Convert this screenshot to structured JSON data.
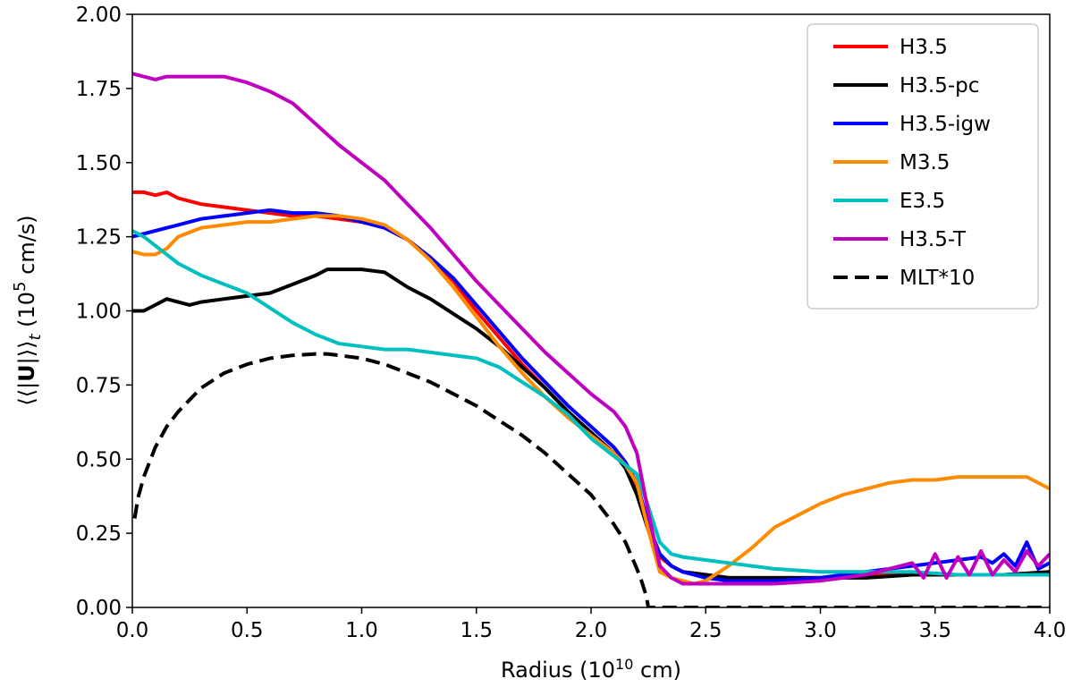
{
  "chart_data": {
    "type": "line",
    "title": "",
    "xlabel": {
      "prefix": "Radius (10",
      "exp": "10",
      "suffix": " cm)"
    },
    "ylabel": {
      "prefix": "⟨⟨|",
      "bold": "U",
      "mid": "|⟩⟩",
      "sub": "t",
      "paren": " (10",
      "exp": "5",
      "suffix": " cm/s)"
    },
    "xlim": [
      0.0,
      4.0
    ],
    "ylim": [
      0.0,
      2.0
    ],
    "xticks": [
      "0.0",
      "0.5",
      "1.0",
      "1.5",
      "2.0",
      "2.5",
      "3.0",
      "3.5",
      "4.0"
    ],
    "yticks": [
      "0.00",
      "0.25",
      "0.50",
      "0.75",
      "1.00",
      "1.25",
      "1.50",
      "1.75",
      "2.00"
    ],
    "legend_position": "top-right",
    "series": [
      {
        "name": "H3.5",
        "color": "#ff0000",
        "dash": "solid",
        "x": [
          0,
          0.05,
          0.1,
          0.15,
          0.2,
          0.3,
          0.4,
          0.5,
          0.6,
          0.7,
          0.8,
          0.9,
          1.0,
          1.1,
          1.2,
          1.3,
          1.4,
          1.5,
          1.6,
          1.7,
          1.8,
          1.9,
          2.0,
          2.1,
          2.15,
          2.2,
          2.25,
          2.3,
          2.35,
          2.4,
          2.5,
          2.6,
          2.8,
          3.0,
          3.2,
          3.4,
          3.6,
          3.8,
          4.0
        ],
        "y": [
          1.4,
          1.4,
          1.39,
          1.4,
          1.38,
          1.36,
          1.35,
          1.34,
          1.33,
          1.32,
          1.32,
          1.31,
          1.3,
          1.28,
          1.24,
          1.18,
          1.1,
          1.0,
          0.91,
          0.82,
          0.74,
          0.66,
          0.59,
          0.52,
          0.47,
          0.4,
          0.26,
          0.17,
          0.14,
          0.12,
          0.11,
          0.1,
          0.1,
          0.1,
          0.11,
          0.11,
          0.11,
          0.11,
          0.12
        ]
      },
      {
        "name": "H3.5-pc",
        "color": "#000000",
        "dash": "solid",
        "x": [
          0,
          0.05,
          0.1,
          0.15,
          0.2,
          0.25,
          0.3,
          0.4,
          0.5,
          0.6,
          0.7,
          0.8,
          0.85,
          0.9,
          1.0,
          1.1,
          1.2,
          1.3,
          1.4,
          1.5,
          1.6,
          1.7,
          1.8,
          1.9,
          2.0,
          2.1,
          2.15,
          2.2,
          2.25,
          2.3,
          2.35,
          2.4,
          2.5,
          2.6,
          2.8,
          3.0,
          3.2,
          3.4,
          3.6,
          3.8,
          4.0
        ],
        "y": [
          1.0,
          1.0,
          1.02,
          1.04,
          1.03,
          1.02,
          1.03,
          1.04,
          1.05,
          1.06,
          1.09,
          1.12,
          1.14,
          1.14,
          1.14,
          1.13,
          1.08,
          1.04,
          0.99,
          0.94,
          0.88,
          0.81,
          0.74,
          0.66,
          0.59,
          0.52,
          0.47,
          0.38,
          0.26,
          0.18,
          0.14,
          0.12,
          0.11,
          0.1,
          0.1,
          0.1,
          0.1,
          0.11,
          0.11,
          0.11,
          0.12
        ]
      },
      {
        "name": "H3.5-igw",
        "color": "#0000ff",
        "dash": "solid",
        "x": [
          0,
          0.05,
          0.1,
          0.15,
          0.2,
          0.3,
          0.4,
          0.5,
          0.6,
          0.7,
          0.8,
          0.9,
          1.0,
          1.1,
          1.2,
          1.3,
          1.4,
          1.5,
          1.6,
          1.7,
          1.8,
          1.9,
          2.0,
          2.1,
          2.15,
          2.2,
          2.25,
          2.3,
          2.35,
          2.4,
          2.5,
          2.6,
          2.8,
          3.0,
          3.1,
          3.2,
          3.3,
          3.4,
          3.5,
          3.6,
          3.7,
          3.75,
          3.8,
          3.85,
          3.9,
          3.95,
          4.0
        ],
        "y": [
          1.25,
          1.26,
          1.27,
          1.28,
          1.29,
          1.31,
          1.32,
          1.33,
          1.34,
          1.33,
          1.33,
          1.32,
          1.3,
          1.28,
          1.24,
          1.18,
          1.11,
          1.02,
          0.93,
          0.84,
          0.76,
          0.68,
          0.61,
          0.54,
          0.49,
          0.42,
          0.28,
          0.18,
          0.14,
          0.12,
          0.1,
          0.09,
          0.09,
          0.1,
          0.11,
          0.12,
          0.13,
          0.14,
          0.15,
          0.16,
          0.17,
          0.15,
          0.18,
          0.14,
          0.22,
          0.13,
          0.15
        ]
      },
      {
        "name": "M3.5",
        "color": "#ff8c00",
        "dash": "solid",
        "x": [
          0,
          0.05,
          0.1,
          0.15,
          0.2,
          0.3,
          0.4,
          0.5,
          0.6,
          0.7,
          0.8,
          0.9,
          1.0,
          1.1,
          1.2,
          1.3,
          1.4,
          1.5,
          1.6,
          1.7,
          1.8,
          1.9,
          2.0,
          2.1,
          2.15,
          2.2,
          2.25,
          2.3,
          2.35,
          2.4,
          2.45,
          2.5,
          2.6,
          2.7,
          2.8,
          2.9,
          3.0,
          3.1,
          3.2,
          3.3,
          3.4,
          3.5,
          3.6,
          3.7,
          3.8,
          3.9,
          4.0
        ],
        "y": [
          1.2,
          1.19,
          1.19,
          1.21,
          1.25,
          1.28,
          1.29,
          1.3,
          1.3,
          1.31,
          1.32,
          1.32,
          1.31,
          1.29,
          1.24,
          1.17,
          1.08,
          0.98,
          0.88,
          0.79,
          0.71,
          0.64,
          0.58,
          0.52,
          0.48,
          0.42,
          0.26,
          0.12,
          0.1,
          0.09,
          0.08,
          0.09,
          0.14,
          0.2,
          0.27,
          0.31,
          0.35,
          0.38,
          0.4,
          0.42,
          0.43,
          0.43,
          0.44,
          0.44,
          0.44,
          0.44,
          0.4
        ]
      },
      {
        "name": "E3.5",
        "color": "#00bfbf",
        "dash": "solid",
        "x": [
          0,
          0.05,
          0.1,
          0.15,
          0.2,
          0.3,
          0.4,
          0.5,
          0.6,
          0.7,
          0.8,
          0.9,
          1.0,
          1.1,
          1.2,
          1.3,
          1.4,
          1.5,
          1.6,
          1.7,
          1.8,
          1.9,
          2.0,
          2.1,
          2.15,
          2.2,
          2.25,
          2.3,
          2.35,
          2.4,
          2.5,
          2.6,
          2.8,
          3.0,
          3.2,
          3.4,
          3.6,
          3.8,
          4.0
        ],
        "y": [
          1.27,
          1.25,
          1.22,
          1.19,
          1.16,
          1.12,
          1.09,
          1.06,
          1.01,
          0.96,
          0.92,
          0.89,
          0.88,
          0.87,
          0.87,
          0.86,
          0.85,
          0.84,
          0.81,
          0.76,
          0.71,
          0.65,
          0.57,
          0.51,
          0.48,
          0.45,
          0.34,
          0.22,
          0.18,
          0.17,
          0.16,
          0.15,
          0.13,
          0.12,
          0.12,
          0.12,
          0.11,
          0.11,
          0.11
        ]
      },
      {
        "name": "H3.5-T",
        "color": "#bf00bf",
        "dash": "solid",
        "x": [
          0,
          0.05,
          0.1,
          0.15,
          0.2,
          0.3,
          0.4,
          0.5,
          0.6,
          0.7,
          0.8,
          0.9,
          1.0,
          1.1,
          1.2,
          1.3,
          1.4,
          1.5,
          1.6,
          1.7,
          1.8,
          1.9,
          2.0,
          2.1,
          2.15,
          2.2,
          2.25,
          2.3,
          2.35,
          2.4,
          2.5,
          2.6,
          2.8,
          3.0,
          3.1,
          3.2,
          3.3,
          3.4,
          3.45,
          3.5,
          3.55,
          3.6,
          3.65,
          3.7,
          3.75,
          3.8,
          3.85,
          3.9,
          3.95,
          4.0
        ],
        "y": [
          1.8,
          1.79,
          1.78,
          1.79,
          1.79,
          1.79,
          1.79,
          1.77,
          1.74,
          1.7,
          1.63,
          1.56,
          1.5,
          1.44,
          1.36,
          1.28,
          1.19,
          1.1,
          1.02,
          0.94,
          0.86,
          0.79,
          0.72,
          0.66,
          0.61,
          0.52,
          0.32,
          0.14,
          0.1,
          0.08,
          0.08,
          0.08,
          0.08,
          0.09,
          0.1,
          0.11,
          0.13,
          0.15,
          0.1,
          0.18,
          0.1,
          0.17,
          0.11,
          0.19,
          0.11,
          0.16,
          0.12,
          0.19,
          0.14,
          0.18
        ]
      },
      {
        "name": "MLT*10",
        "color": "#000000",
        "dash": "dashed",
        "curve": "mlt",
        "x": [
          0.01,
          0.025,
          0.05,
          0.1,
          0.15,
          0.2,
          0.3,
          0.4,
          0.5,
          0.6,
          0.7,
          0.8,
          0.85,
          0.9,
          1.0,
          1.1,
          1.2,
          1.3,
          1.4,
          1.5,
          1.6,
          1.7,
          1.8,
          1.9,
          2.0,
          2.1,
          2.15,
          2.2,
          2.22,
          2.24,
          2.25,
          2.26,
          2.3,
          2.5,
          3.0,
          3.5,
          4.0
        ],
        "y": [
          0.3,
          0.37,
          0.44,
          0.54,
          0.61,
          0.66,
          0.74,
          0.79,
          0.82,
          0.84,
          0.85,
          0.855,
          0.855,
          0.85,
          0.84,
          0.82,
          0.79,
          0.76,
          0.72,
          0.68,
          0.63,
          0.58,
          0.52,
          0.45,
          0.38,
          0.28,
          0.22,
          0.13,
          0.09,
          0.04,
          0.0,
          0.0,
          0.0,
          0.0,
          0.0,
          0.0,
          0.0
        ]
      }
    ]
  }
}
